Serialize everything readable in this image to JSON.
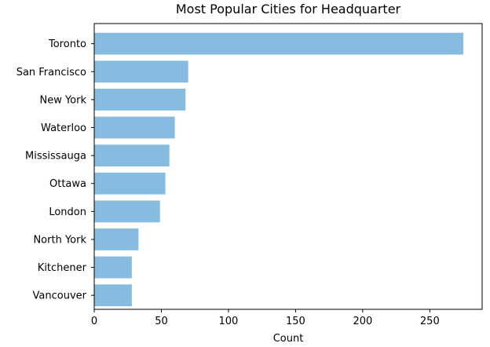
{
  "chart_data": {
    "type": "bar",
    "orientation": "horizontal",
    "title": "Most Popular Cities for Headquarter",
    "xlabel": "Count",
    "ylabel": "",
    "categories": [
      "Toronto",
      "San Francisco",
      "New York",
      "Waterloo",
      "Mississauga",
      "Ottawa",
      "London",
      "North York",
      "Kitchener",
      "Vancouver"
    ],
    "values": [
      275,
      70,
      68,
      60,
      56,
      53,
      49,
      33,
      28,
      28
    ],
    "xlim": [
      0,
      289
    ],
    "xticks": [
      0,
      50,
      100,
      150,
      200,
      250
    ],
    "grid": false,
    "bar_color": "#86bcdf"
  }
}
